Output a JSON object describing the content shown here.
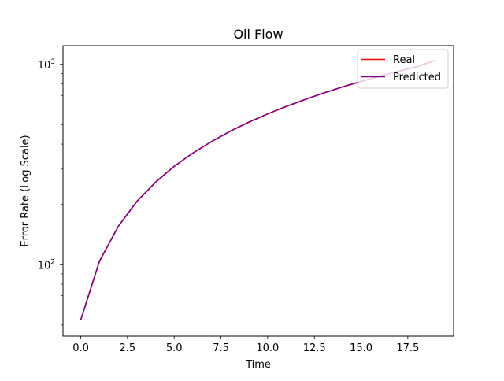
{
  "chart_data": {
    "type": "line",
    "title": "Oil Flow",
    "xlabel": "Time",
    "ylabel": "Error Rate (Log Scale)",
    "yscale": "log",
    "xlim": [
      -0.95,
      19.95
    ],
    "ylim": [
      44,
      1240
    ],
    "x_ticks": [
      {
        "value": 0.0,
        "label": "0.0"
      },
      {
        "value": 2.5,
        "label": "2.5"
      },
      {
        "value": 5.0,
        "label": "5.0"
      },
      {
        "value": 7.5,
        "label": "7.5"
      },
      {
        "value": 10.0,
        "label": "10.0"
      },
      {
        "value": 12.5,
        "label": "12.5"
      },
      {
        "value": 15.0,
        "label": "15.0"
      },
      {
        "value": 17.5,
        "label": "17.5"
      }
    ],
    "y_ticks": [
      {
        "value": 100,
        "base": "10",
        "exp": "2"
      },
      {
        "value": 1000,
        "base": "10",
        "exp": "3"
      }
    ],
    "x": [
      0,
      1,
      2,
      3,
      4,
      5,
      6,
      7,
      8,
      9,
      10,
      11,
      12,
      13,
      14,
      15,
      16,
      17,
      18,
      19
    ],
    "series": [
      {
        "name": "Real",
        "color": "#ff0000",
        "values": [
          53,
          104,
          155,
          207,
          258,
          310,
          361,
          412,
          464,
          515,
          566,
          617,
          668,
          720,
          771,
          822,
          873,
          924,
          975,
          1050
        ]
      },
      {
        "name": "Predicted",
        "color": "#800080",
        "values": [
          53,
          104,
          155,
          207,
          258,
          310,
          361,
          412,
          464,
          515,
          566,
          617,
          668,
          720,
          771,
          822,
          873,
          924,
          975,
          1050
        ]
      }
    ],
    "grid": false,
    "legend": "top-right"
  }
}
